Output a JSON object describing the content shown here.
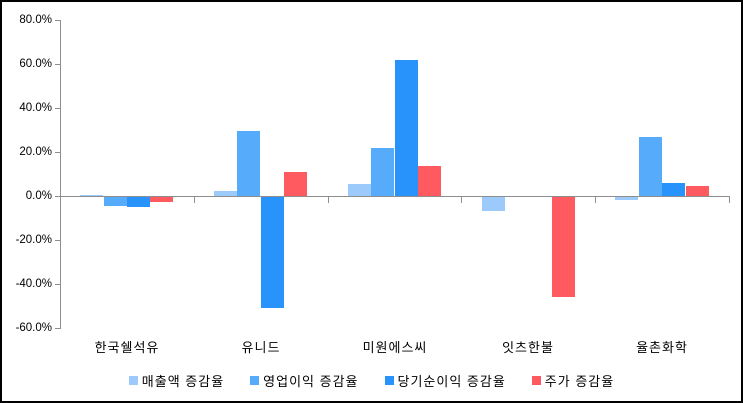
{
  "chart_data": {
    "type": "bar",
    "title": "",
    "xlabel": "",
    "ylabel": "",
    "categories": [
      "한국쉘석유",
      "유니드",
      "미원에스씨",
      "잇츠한불",
      "율촌화학"
    ],
    "series": [
      {
        "name": "매출액 증감율",
        "color": "#9CCAFB",
        "values": [
          0.5,
          2.5,
          5.5,
          -7.0,
          -2.0
        ]
      },
      {
        "name": "영업이익 증감율",
        "color": "#57ABFB",
        "values": [
          -4.5,
          29.5,
          22.0,
          0.0,
          27.0
        ]
      },
      {
        "name": "당기순이익 증감율",
        "color": "#2894FB",
        "values": [
          -5.0,
          -51.0,
          62.0,
          0.0,
          6.0
        ]
      },
      {
        "name": "주가 증감율",
        "color": "#FF5A60",
        "values": [
          -2.5,
          11.0,
          13.5,
          -46.0,
          4.5
        ]
      }
    ],
    "ylim": [
      -60,
      80
    ],
    "ytick_step": 20,
    "ytick_labels": [
      "80.0%",
      "60.0%",
      "40.0%",
      "20.0%",
      "0.0%",
      "-20.0%",
      "-40.0%",
      "-60.0%"
    ],
    "grid": false,
    "legend_position": "bottom",
    "axis_color": "#8e8e8e",
    "background": "#ffffff"
  }
}
